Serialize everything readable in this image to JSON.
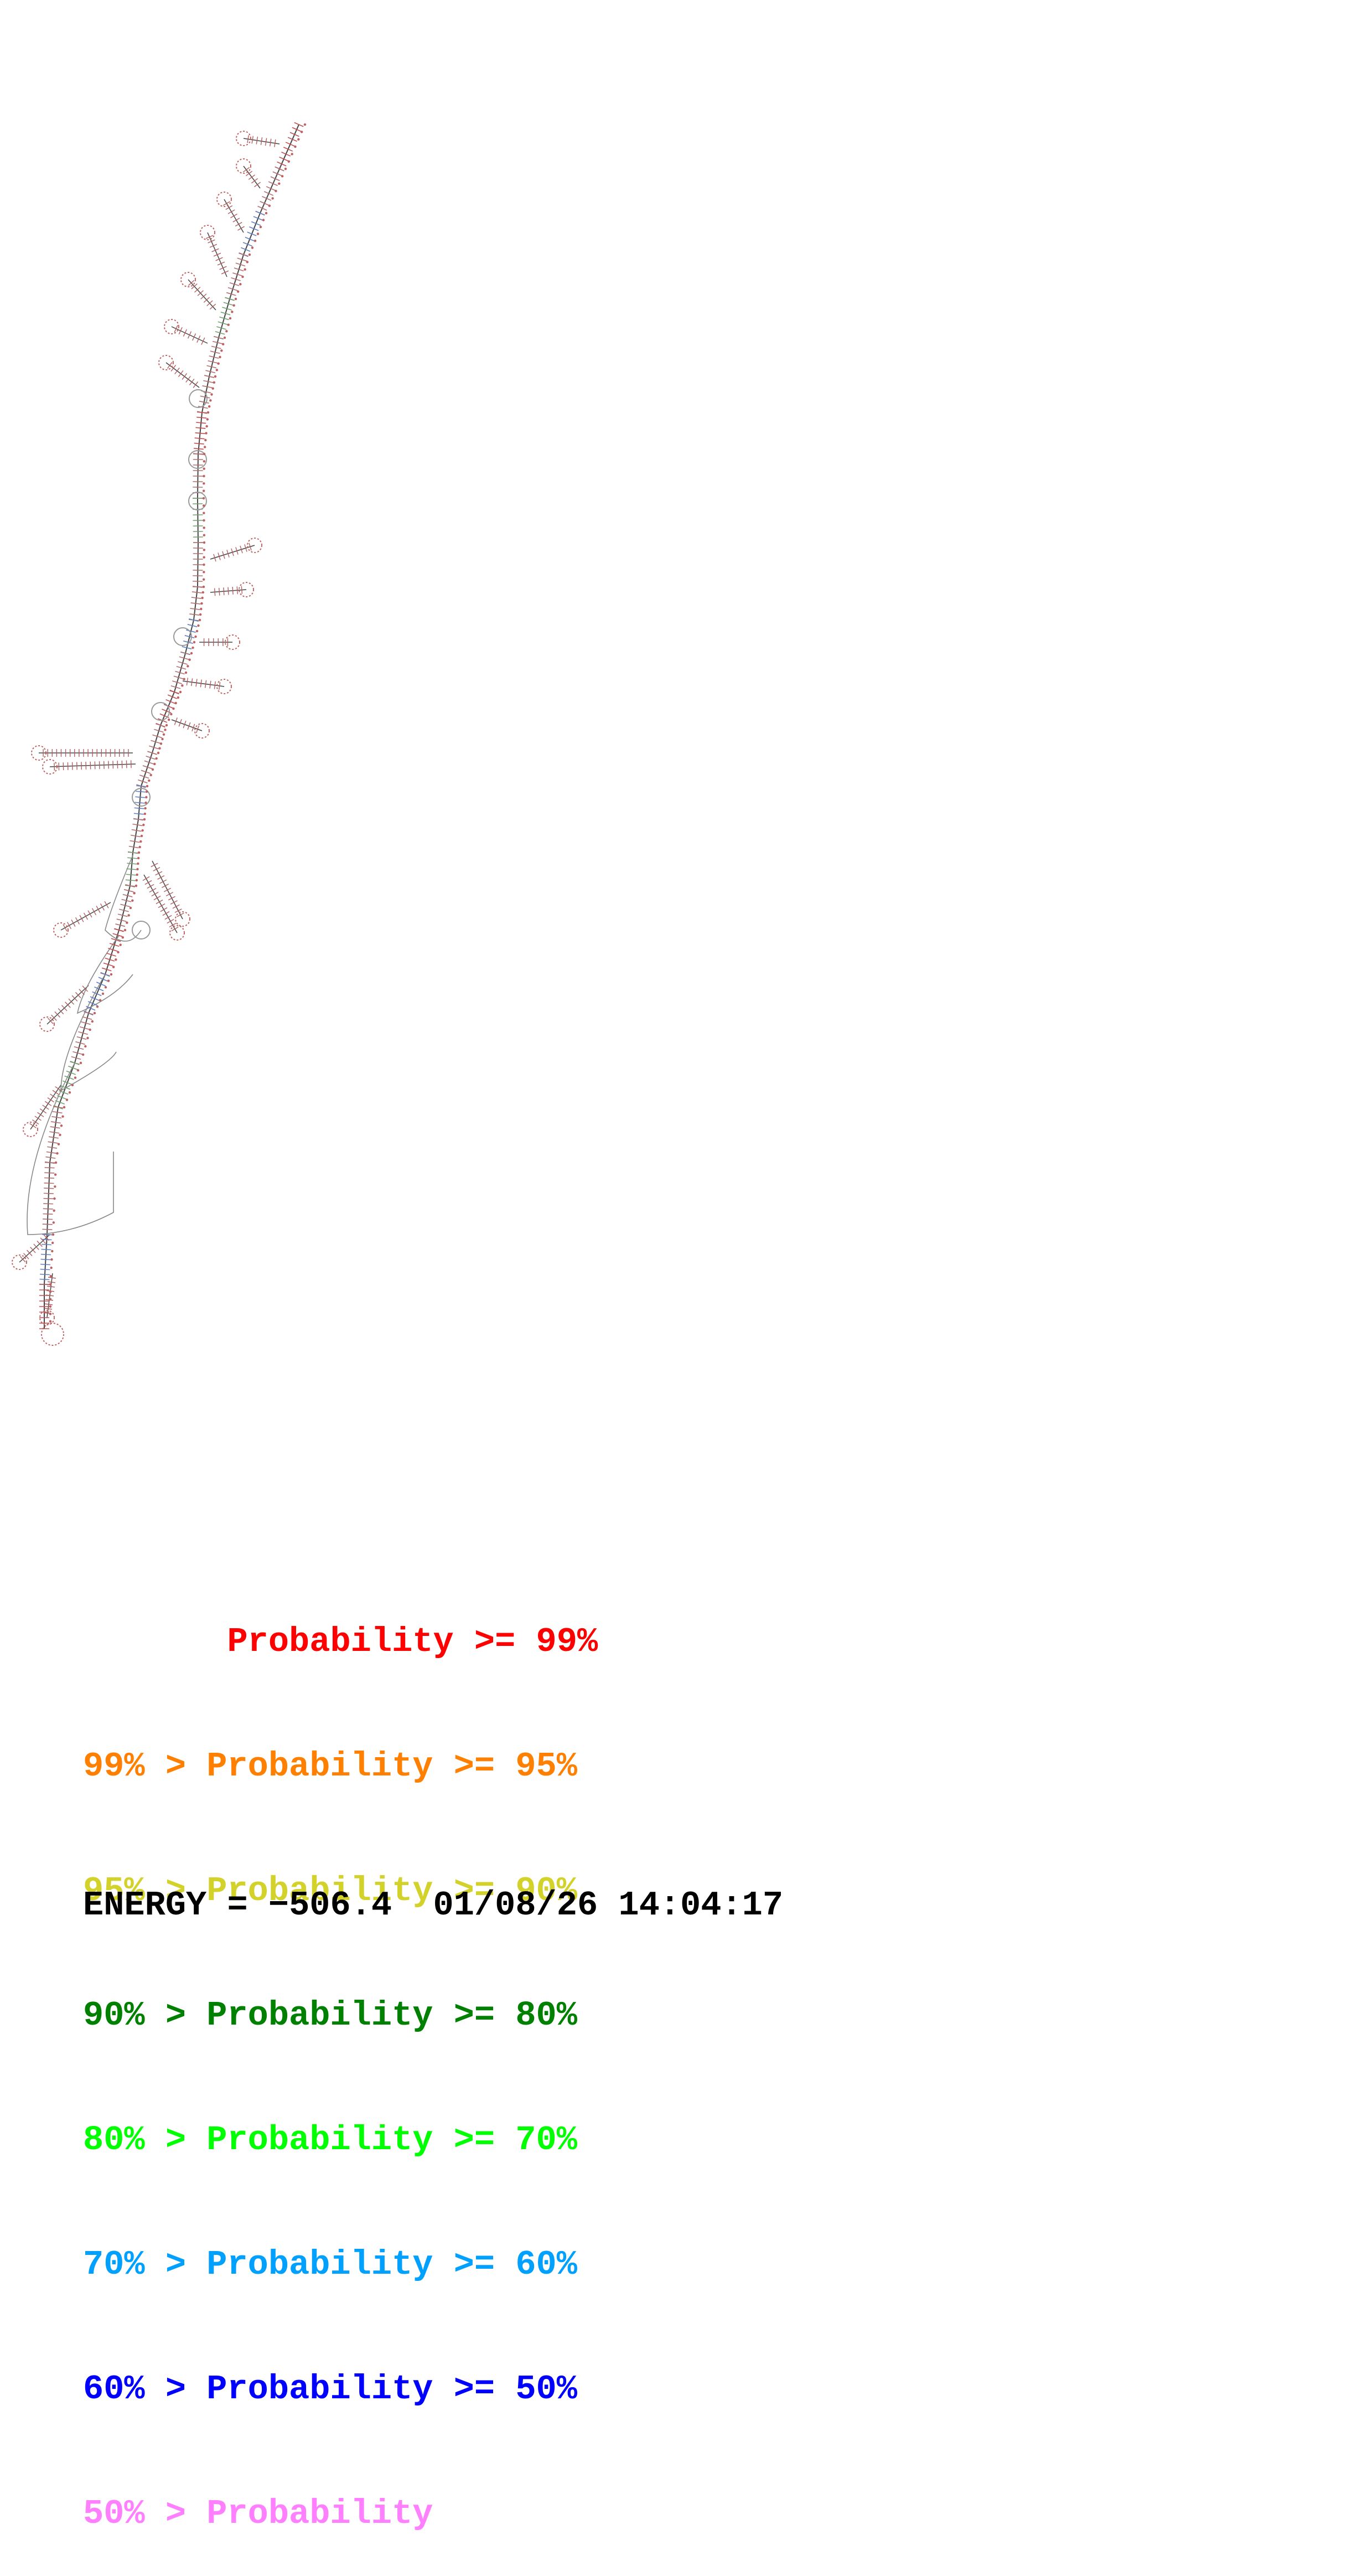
{
  "legend": {
    "items": [
      {
        "text": "       Probability >= 99%",
        "color": "#ff0000"
      },
      {
        "text": "99% > Probability >= 95%",
        "color": "#ff8000"
      },
      {
        "text": "95% > Probability >= 90%",
        "color": "#d2d22a"
      },
      {
        "text": "90% > Probability >= 80%",
        "color": "#008000"
      },
      {
        "text": "80% > Probability >= 70%",
        "color": "#00ff00"
      },
      {
        "text": "70% > Probability >= 60%",
        "color": "#00a0ff"
      },
      {
        "text": "60% > Probability >= 50%",
        "color": "#0000ff"
      },
      {
        "text": "50% > Probability",
        "color": "#ff80ff"
      }
    ]
  },
  "footer": {
    "energy_label": "ENERGY = ",
    "energy_value": "−506.4",
    "datetime": "01/08/26 14:04:17"
  },
  "structure": {
    "base_color": "#c06060",
    "backbone_color": "#444444"
  }
}
